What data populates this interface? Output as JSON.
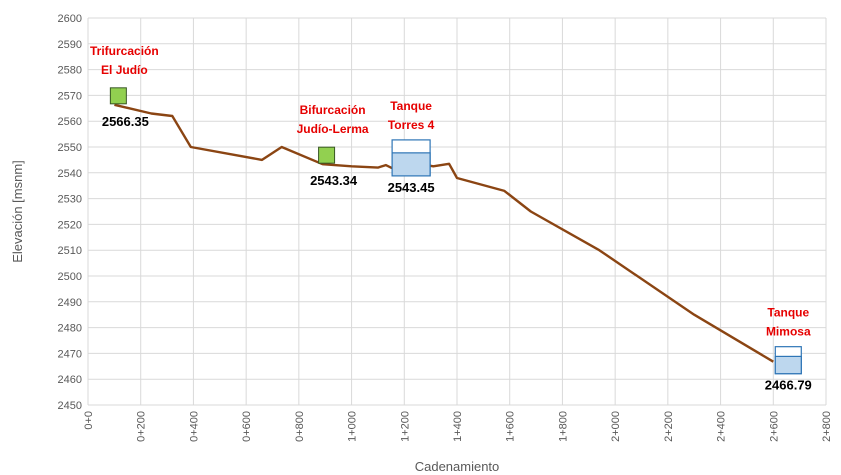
{
  "chart_data": {
    "type": "line",
    "xlabel": "Cadenamiento",
    "ylabel": "Elevación [msnm]",
    "xlim": [
      0,
      2800
    ],
    "ylim": [
      2450,
      2600
    ],
    "grid": true,
    "x_tick_labels": [
      "0+0",
      "0+200",
      "0+400",
      "0+600",
      "0+800",
      "1+000",
      "1+200",
      "1+400",
      "1+600",
      "1+800",
      "2+000",
      "2+200",
      "2+400",
      "2+600",
      "2+800"
    ],
    "y_tick_labels": [
      "2450",
      "2460",
      "2470",
      "2480",
      "2490",
      "2500",
      "2510",
      "2520",
      "2530",
      "2540",
      "2550",
      "2560",
      "2570",
      "2580",
      "2590",
      "2600"
    ],
    "series": [
      {
        "color": "#8b4513",
        "x": [
          100,
          240,
          320,
          390,
          660,
          735,
          890,
          1000,
          1100,
          1130,
          1160,
          1200,
          1260,
          1310,
          1340,
          1370,
          1400,
          1580,
          1680,
          1940,
          2300,
          2600
        ],
        "y": [
          2566.35,
          2563,
          2562,
          2550,
          2545,
          2550,
          2543.34,
          2542.5,
          2542,
          2543,
          2541.5,
          2542.5,
          2543.45,
          2542.5,
          2543,
          2543.5,
          2538,
          2533,
          2525,
          2510,
          2485,
          2466.79
        ]
      }
    ],
    "annotations": [
      {
        "title_lines": [
          "Trifurcación",
          "El Judío"
        ],
        "value": "2566.35",
        "x": 100,
        "y": 2566.35,
        "marker": "node",
        "color": "#92d050"
      },
      {
        "title_lines": [
          "Bifurcación",
          "Judío-Lerma"
        ],
        "value": "2543.34",
        "x": 890,
        "y": 2543.34,
        "marker": "node",
        "color": "#92d050"
      },
      {
        "title_lines": [
          "Tanque",
          "Torres 4"
        ],
        "value": "2543.45",
        "x": 1260,
        "y": 2543.45,
        "marker": "tank",
        "color": "#bdd7ee"
      },
      {
        "title_lines": [
          "Tanque",
          "Mimosa"
        ],
        "value": "2466.79",
        "x": 2600,
        "y": 2466.79,
        "marker": "tank",
        "color": "#bdd7ee"
      }
    ]
  }
}
